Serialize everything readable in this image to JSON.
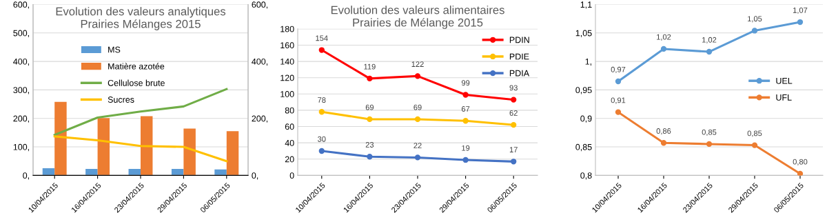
{
  "chart_data": [
    {
      "type": "bar",
      "title": "Evolution des valeurs analytiques\nPrairies Mélanges 2015",
      "categories": [
        "10/04/2015",
        "16/04/2015",
        "23/04/2015",
        "29/04/2015",
        "06/05/2015"
      ],
      "series": [
        {
          "name": "MS",
          "color": "#5b9bd5",
          "values": [
            25,
            23,
            23,
            23,
            21
          ]
        },
        {
          "name": "Matière azotée",
          "color": "#ed7d31",
          "values": [
            258,
            201,
            208,
            164,
            155
          ]
        },
        {
          "name": "Cellulose brute",
          "color": "#70ad47",
          "type": "line",
          "values": [
            142,
            203,
            224,
            242,
            303
          ]
        },
        {
          "name": "Sucres",
          "color": "#ffc000",
          "type": "line",
          "values": [
            137,
            123,
            103,
            100,
            50
          ]
        }
      ],
      "ylim": [
        0,
        600
      ],
      "yticks": [
        {
          "value": 0,
          "label": "0,"
        },
        {
          "value": 100,
          "label": "100,"
        },
        {
          "value": 200,
          "label": "200,"
        },
        {
          "value": 300,
          "label": "300,"
        },
        {
          "value": 400,
          "label": "400,"
        },
        {
          "value": 500,
          "label": "500,"
        },
        {
          "value": 600,
          "label": "600,"
        }
      ],
      "y2lim": [
        0,
        600
      ],
      "y2ticks": [
        {
          "value": 0,
          "label": "0,"
        },
        {
          "value": 200,
          "label": "200,"
        },
        {
          "value": 400,
          "label": "400,"
        },
        {
          "value": 600,
          "label": "600,"
        }
      ],
      "grid": "y",
      "legend": "top"
    },
    {
      "type": "line",
      "title": "Evolution des valeurs alimentaires\nPrairies de Mélange 2015",
      "categories": [
        "10/04/2015",
        "16/04/2015",
        "23/04/2015",
        "29/04/2015",
        "06/05/2015"
      ],
      "series": [
        {
          "name": "PDIN",
          "color": "#ff0000",
          "values": [
            154,
            119,
            122,
            99,
            93
          ]
        },
        {
          "name": "PDIE",
          "color": "#ffc000",
          "values": [
            78,
            69,
            69,
            67,
            62
          ]
        },
        {
          "name": "PDIA",
          "color": "#4472c4",
          "values": [
            30,
            23,
            22,
            19,
            17
          ]
        }
      ],
      "ylim": [
        0,
        180
      ],
      "yticks": [
        0,
        20,
        40,
        60,
        80,
        100,
        120,
        140,
        160,
        180
      ],
      "grid": "y",
      "legend": "top right",
      "marker": "circle",
      "data_labels": true
    },
    {
      "type": "line",
      "categories": [
        "10/04/2015",
        "16/04/2015",
        "23/04/2015",
        "29/04/2015",
        "06/05/2015"
      ],
      "series": [
        {
          "name": "UEL",
          "color": "#5b9bd5",
          "values": [
            0.965,
            1.022,
            1.017,
            1.054,
            1.069
          ],
          "value_labels": [
            "0,97",
            "1,02",
            "1,02",
            "1,05",
            "1,07"
          ]
        },
        {
          "name": "UFL",
          "color": "#ed7d31",
          "values": [
            0.911,
            0.857,
            0.855,
            0.853,
            0.803
          ],
          "value_labels": [
            "0,91",
            "0,86",
            "0,85",
            "0,85",
            "0,80"
          ]
        }
      ],
      "ylim": [
        0.8,
        1.1
      ],
      "yticks": [
        {
          "value": 0.8,
          "label": "0,8"
        },
        {
          "value": 0.85,
          "label": "0,85"
        },
        {
          "value": 0.9,
          "label": "0,9"
        },
        {
          "value": 0.95,
          "label": "0,95"
        },
        {
          "value": 1.0,
          "label": "1,"
        },
        {
          "value": 1.05,
          "label": "1,05"
        },
        {
          "value": 1.1,
          "label": "1,1"
        }
      ],
      "grid": "y",
      "legend": "right",
      "marker": "circle"
    }
  ]
}
